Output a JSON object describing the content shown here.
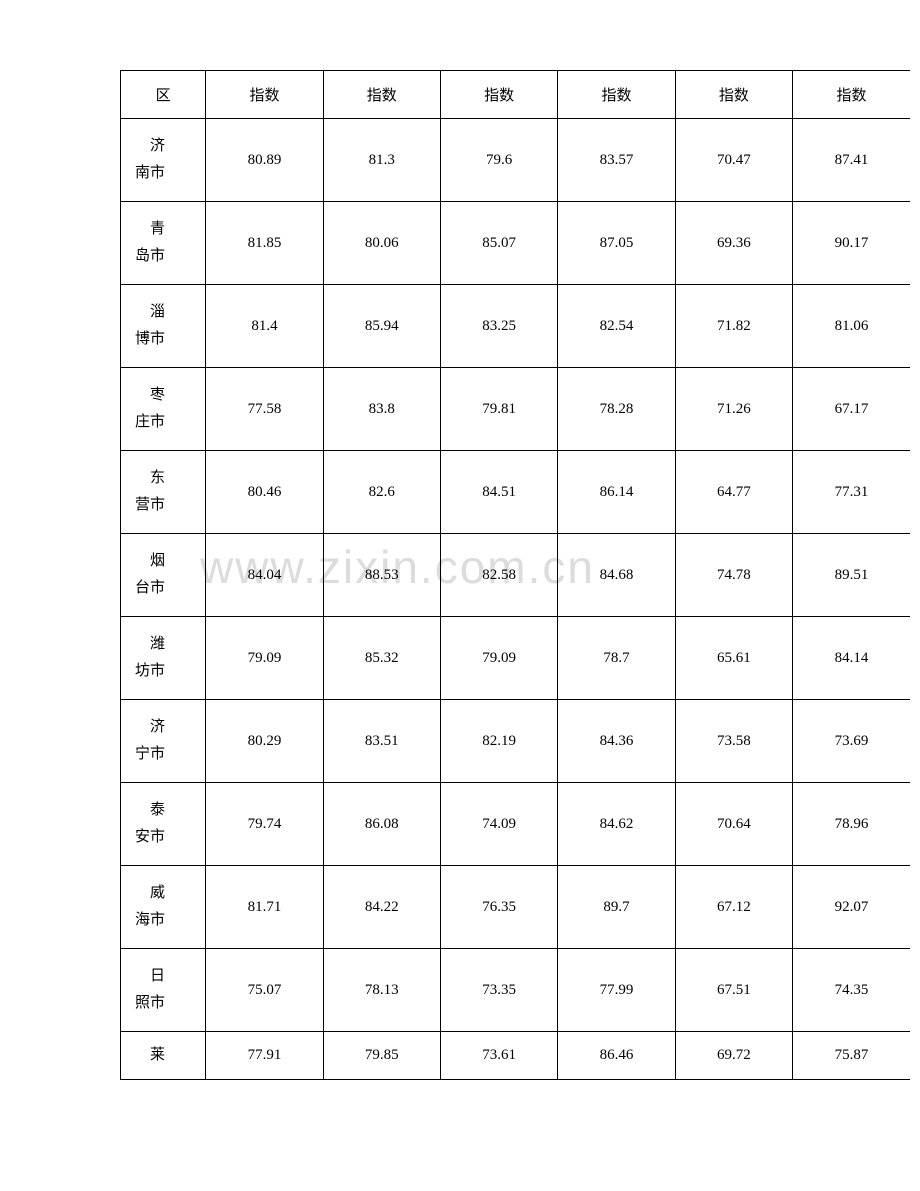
{
  "watermark": "www.zixin.com.cn",
  "table": {
    "headers": {
      "region": "区",
      "col1": "指数",
      "col2": "指数",
      "col3": "指数",
      "col4": "指数",
      "col5": "指数",
      "col6": "指数"
    },
    "rows": [
      {
        "region_line1": "　济",
        "region_line2": "南市",
        "v1": "80.89",
        "v2": "81.3",
        "v3": "79.6",
        "v4": "83.57",
        "v5": "70.47",
        "v6": "87.41"
      },
      {
        "region_line1": "　青",
        "region_line2": "岛市",
        "v1": "81.85",
        "v2": "80.06",
        "v3": "85.07",
        "v4": "87.05",
        "v5": "69.36",
        "v6": "90.17"
      },
      {
        "region_line1": "　淄",
        "region_line2": "博市",
        "v1": "81.4",
        "v2": "85.94",
        "v3": "83.25",
        "v4": "82.54",
        "v5": "71.82",
        "v6": "81.06"
      },
      {
        "region_line1": "　枣",
        "region_line2": "庄市",
        "v1": "77.58",
        "v2": "83.8",
        "v3": "79.81",
        "v4": "78.28",
        "v5": "71.26",
        "v6": "67.17"
      },
      {
        "region_line1": "　东",
        "region_line2": "营市",
        "v1": "80.46",
        "v2": "82.6",
        "v3": "84.51",
        "v4": "86.14",
        "v5": "64.77",
        "v6": "77.31"
      },
      {
        "region_line1": "　烟",
        "region_line2": "台市",
        "v1": "84.04",
        "v2": "88.53",
        "v3": "82.58",
        "v4": "84.68",
        "v5": "74.78",
        "v6": "89.51"
      },
      {
        "region_line1": "　潍",
        "region_line2": "坊市",
        "v1": "79.09",
        "v2": "85.32",
        "v3": "79.09",
        "v4": "78.7",
        "v5": "65.61",
        "v6": "84.14"
      },
      {
        "region_line1": "　济",
        "region_line2": "宁市",
        "v1": "80.29",
        "v2": "83.51",
        "v3": "82.19",
        "v4": "84.36",
        "v5": "73.58",
        "v6": "73.69"
      },
      {
        "region_line1": "　泰",
        "region_line2": "安市",
        "v1": "79.74",
        "v2": "86.08",
        "v3": "74.09",
        "v4": "84.62",
        "v5": "70.64",
        "v6": "78.96"
      },
      {
        "region_line1": "　威",
        "region_line2": "海市",
        "v1": "81.71",
        "v2": "84.22",
        "v3": "76.35",
        "v4": "89.7",
        "v5": "67.12",
        "v6": "92.07"
      },
      {
        "region_line1": "　日",
        "region_line2": "照市",
        "v1": "75.07",
        "v2": "78.13",
        "v3": "73.35",
        "v4": "77.99",
        "v5": "67.51",
        "v6": "74.35"
      },
      {
        "region_line1": "　莱",
        "region_line2": "",
        "v1": "77.91",
        "v2": "79.85",
        "v3": "73.61",
        "v4": "86.46",
        "v5": "69.72",
        "v6": "75.87"
      }
    ],
    "colors": {
      "background": "#ffffff",
      "border": "#000000",
      "text": "#000000",
      "watermark": "#dcdcdc"
    }
  }
}
